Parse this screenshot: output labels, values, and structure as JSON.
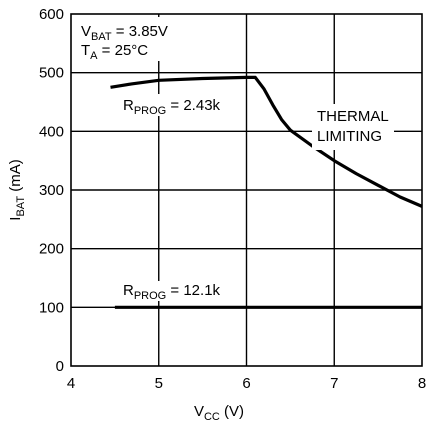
{
  "chart_data": {
    "type": "line",
    "xlabel": {
      "main": "V",
      "sub": "CC",
      "unit": " (V)"
    },
    "ylabel": {
      "main": "I",
      "sub": "BAT",
      "unit": " (mA)"
    },
    "xlim": [
      4,
      8
    ],
    "ylim": [
      0,
      600
    ],
    "xticks": [
      "4",
      "5",
      "6",
      "7",
      "8"
    ],
    "yticks": [
      "0",
      "100",
      "200",
      "300",
      "400",
      "500",
      "600"
    ],
    "grid": true,
    "conditions": [
      {
        "main": "V",
        "sub": "BAT",
        "rest": " = 3.85V"
      },
      {
        "main": "T",
        "sub": "A",
        "rest": " = 25°C"
      }
    ],
    "series": [
      {
        "label": {
          "main": "R",
          "sub": "PROG",
          "rest": " = 2.43k"
        },
        "x": [
          4.45,
          4.7,
          5.0,
          5.5,
          6.0,
          6.1,
          6.2,
          6.3,
          6.4,
          6.5,
          6.75,
          7.0,
          7.25,
          7.5,
          7.75,
          8.0
        ],
        "y": [
          475,
          481,
          487,
          490,
          492,
          492,
          472,
          445,
          420,
          402,
          375,
          350,
          328,
          308,
          288,
          272
        ]
      },
      {
        "label": {
          "main": "R",
          "sub": "PROG",
          "rest": " = 12.1k"
        },
        "x": [
          4.5,
          5.0,
          6.0,
          7.0,
          8.0
        ],
        "y": [
          100,
          100,
          100,
          100,
          100
        ]
      }
    ],
    "annotations": [
      "THERMAL",
      "LIMITING"
    ]
  }
}
